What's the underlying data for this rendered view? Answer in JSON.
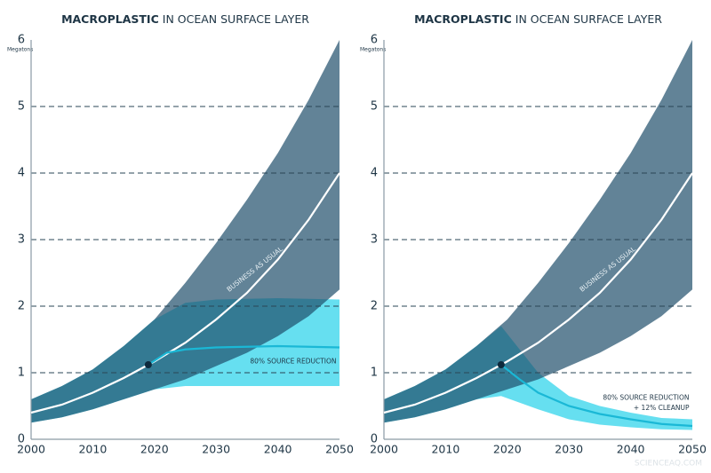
{
  "chart_data": [
    {
      "type": "band-line",
      "title_emphasis": "MACROPLASTIC",
      "title": "IN OCEAN SURFACE LAYER",
      "y_label": "Megatons",
      "xlim": [
        2000,
        2050
      ],
      "xticks": [
        2000,
        2010,
        2020,
        2030,
        2040,
        2050
      ],
      "ylim": [
        0,
        6
      ],
      "yticks": [
        0,
        1,
        2,
        3,
        4,
        5,
        6
      ],
      "grid": true,
      "bands": [
        {
          "color": "#66dff0",
          "x": [
            2000,
            2005,
            2010,
            2015,
            2020,
            2025,
            2030,
            2040,
            2050
          ],
          "upper": [
            0.6,
            0.8,
            1.05,
            1.4,
            1.8,
            2.05,
            2.1,
            2.12,
            2.1
          ],
          "lower": [
            0.25,
            0.33,
            0.45,
            0.6,
            0.75,
            0.8,
            0.8,
            0.8,
            0.8
          ]
        },
        {
          "color": "#1f4f6b",
          "x": [
            2000,
            2005,
            2010,
            2015,
            2020,
            2025,
            2030,
            2035,
            2040,
            2045,
            2050
          ],
          "upper": [
            0.6,
            0.8,
            1.05,
            1.4,
            1.8,
            2.35,
            2.95,
            3.6,
            4.3,
            5.1,
            6.0
          ],
          "lower": [
            0.25,
            0.33,
            0.45,
            0.6,
            0.75,
            0.9,
            1.1,
            1.3,
            1.55,
            1.85,
            2.25
          ]
        }
      ],
      "lines": [
        {
          "color": "#ffffff",
          "x": [
            2000,
            2005,
            2010,
            2015,
            2020,
            2025,
            2030,
            2035,
            2040,
            2045,
            2050
          ],
          "values": [
            0.4,
            0.52,
            0.7,
            0.92,
            1.17,
            1.45,
            1.8,
            2.2,
            2.7,
            3.3,
            4.0
          ]
        },
        {
          "color": "#1ab8d6",
          "x": [
            2019,
            2022,
            2025,
            2030,
            2040,
            2050
          ],
          "values": [
            1.12,
            1.3,
            1.35,
            1.38,
            1.4,
            1.38
          ]
        }
      ],
      "points": {
        "color": "#0d2a3d",
        "x": [
          2019
        ],
        "values": [
          1.12
        ]
      },
      "annotations": [
        "BUSINESS AS USUAL",
        "80% SOURCE REDUCTION"
      ]
    },
    {
      "type": "band-line",
      "title_emphasis": "MACROPLASTIC",
      "title": "IN OCEAN SURFACE LAYER",
      "y_label": "Megatons",
      "xlim": [
        2000,
        2050
      ],
      "xticks": [
        2000,
        2010,
        2020,
        2030,
        2040,
        2050
      ],
      "ylim": [
        0,
        6
      ],
      "yticks": [
        0,
        1,
        2,
        3,
        4,
        5,
        6
      ],
      "grid": true,
      "bands": [
        {
          "color": "#66dff0",
          "x": [
            2000,
            2005,
            2010,
            2015,
            2019,
            2025,
            2030,
            2035,
            2040,
            2045,
            2050
          ],
          "upper": [
            0.6,
            0.8,
            1.05,
            1.4,
            1.7,
            1.0,
            0.65,
            0.5,
            0.4,
            0.32,
            0.3
          ],
          "lower": [
            0.25,
            0.33,
            0.45,
            0.6,
            0.65,
            0.45,
            0.3,
            0.22,
            0.18,
            0.15,
            0.14
          ]
        },
        {
          "color": "#1f4f6b",
          "x": [
            2000,
            2005,
            2010,
            2015,
            2020,
            2025,
            2030,
            2035,
            2040,
            2045,
            2050
          ],
          "upper": [
            0.6,
            0.8,
            1.05,
            1.4,
            1.8,
            2.35,
            2.95,
            3.6,
            4.3,
            5.1,
            6.0
          ],
          "lower": [
            0.25,
            0.33,
            0.45,
            0.6,
            0.75,
            0.9,
            1.1,
            1.3,
            1.55,
            1.85,
            2.25
          ]
        }
      ],
      "lines": [
        {
          "color": "#ffffff",
          "x": [
            2000,
            2005,
            2010,
            2015,
            2020,
            2025,
            2030,
            2035,
            2040,
            2045,
            2050
          ],
          "values": [
            0.4,
            0.52,
            0.7,
            0.92,
            1.17,
            1.45,
            1.8,
            2.2,
            2.7,
            3.3,
            4.0
          ]
        },
        {
          "color": "#1ab8d6",
          "x": [
            2019,
            2022,
            2025,
            2030,
            2035,
            2040,
            2045,
            2050
          ],
          "values": [
            1.12,
            0.9,
            0.7,
            0.5,
            0.38,
            0.3,
            0.23,
            0.2
          ]
        }
      ],
      "points": {
        "color": "#0d2a3d",
        "x": [
          2019
        ],
        "values": [
          1.12
        ]
      },
      "annotations": [
        "BUSINESS AS USUAL",
        "80% SOURCE REDUCTION",
        "+ 12% CLEANUP"
      ]
    }
  ],
  "watermark": "SCIENCEAQ.COM"
}
